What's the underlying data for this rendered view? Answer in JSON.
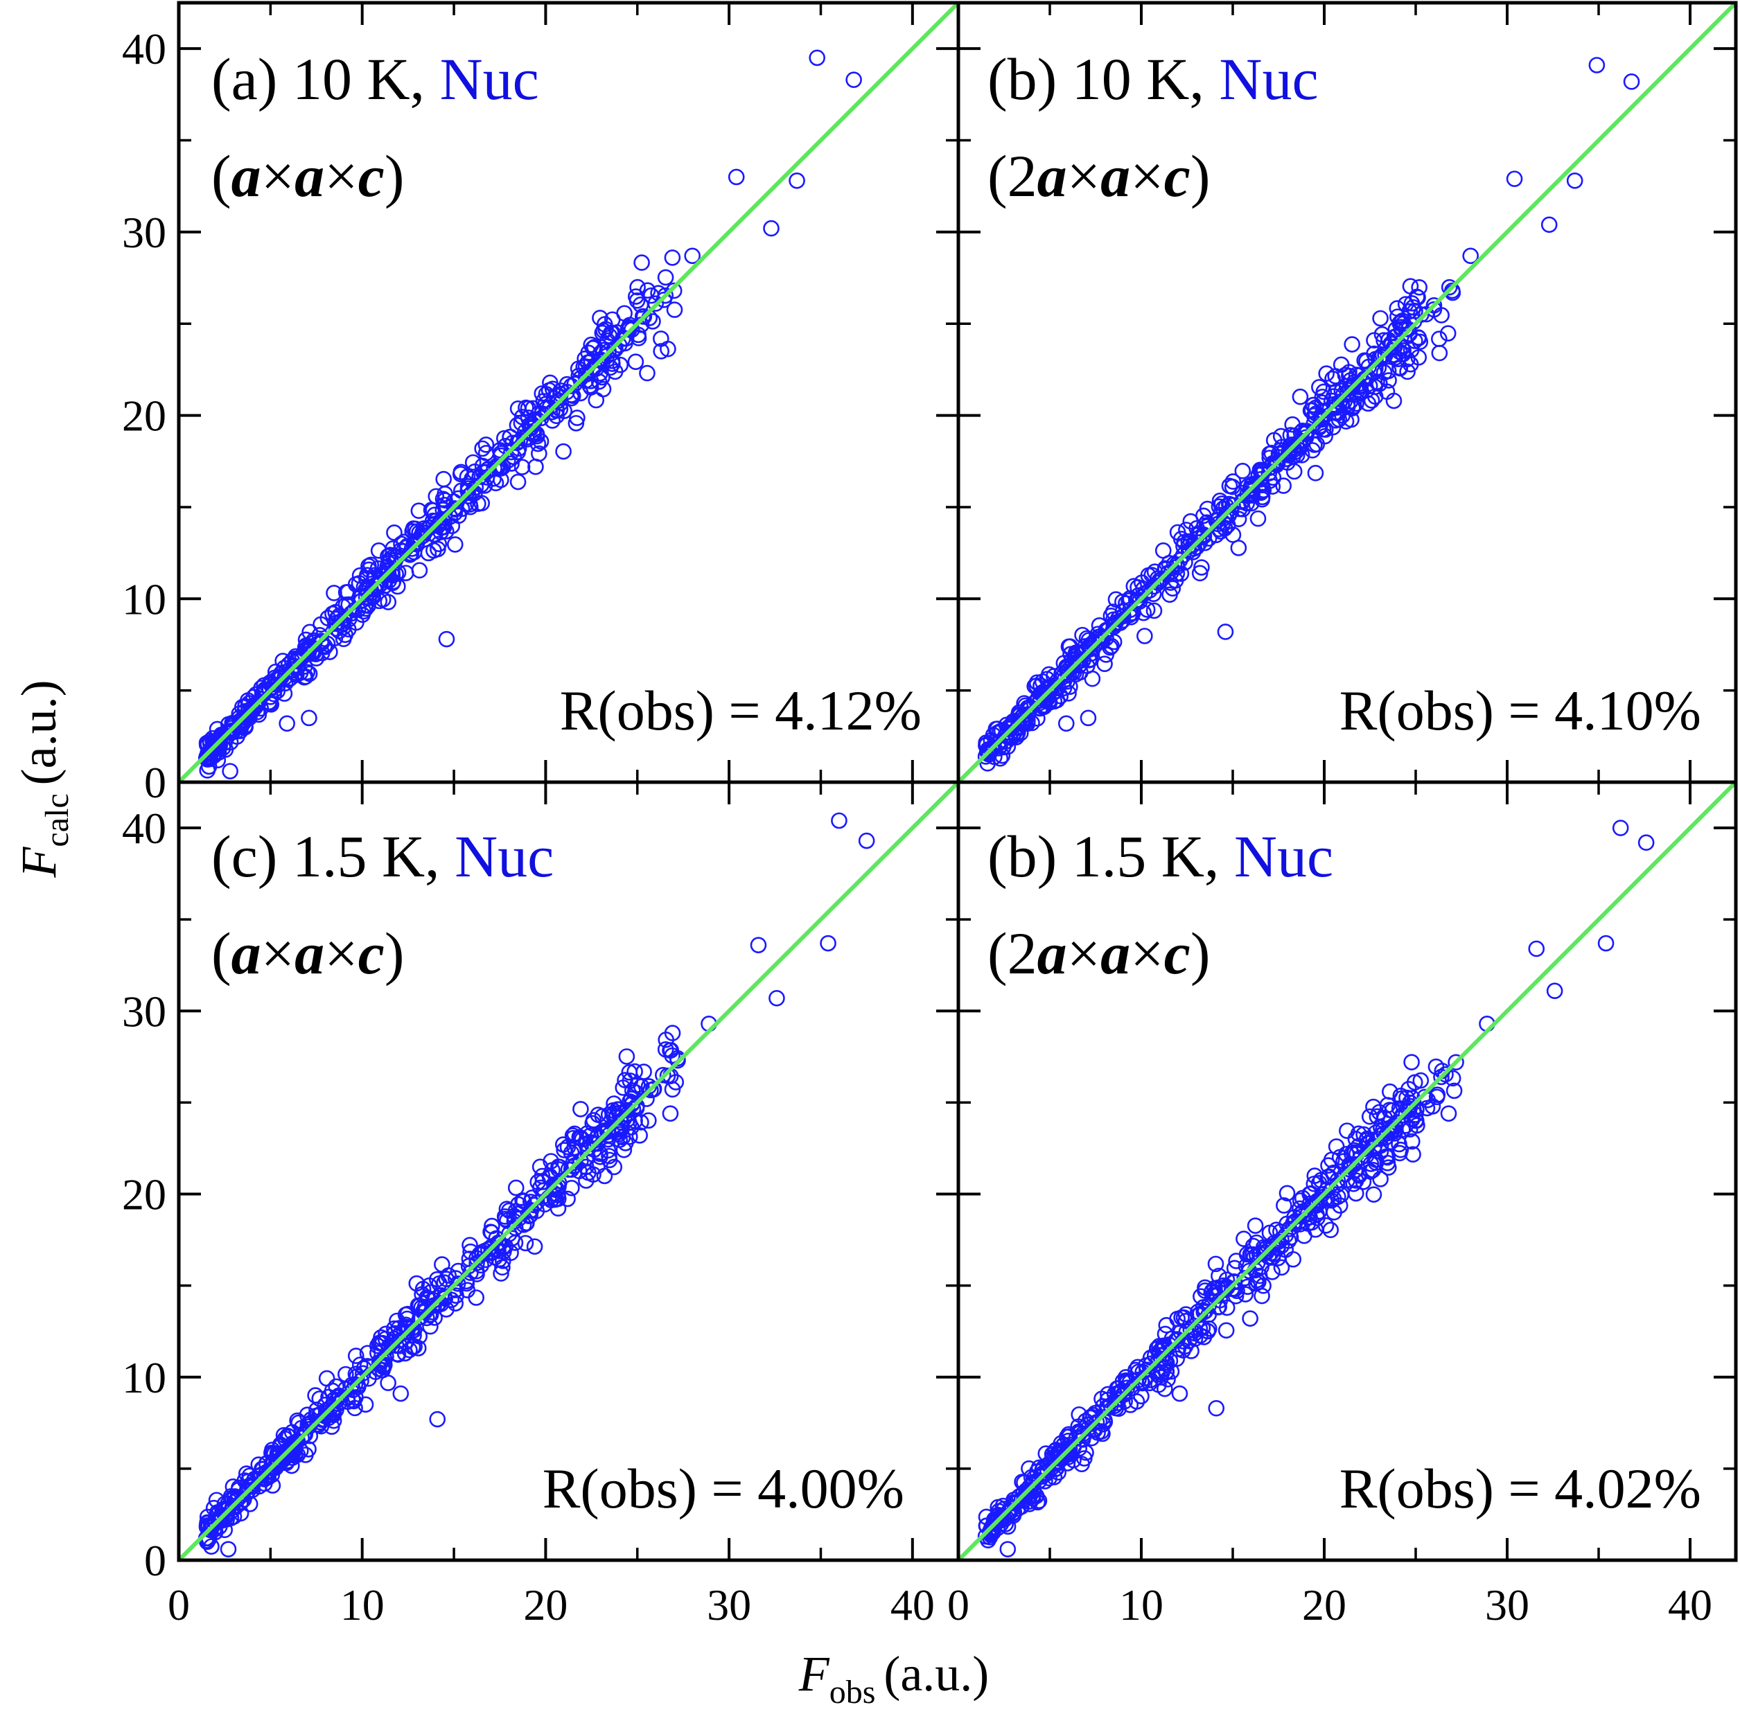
{
  "figure": {
    "xlabel": {
      "symbol": "F",
      "subscript": "obs",
      "unit": "(a.u.)"
    },
    "ylabel": {
      "symbol": "F",
      "subscript": "calc",
      "unit": "(a.u.)"
    },
    "x_ticks": [
      "0",
      "10",
      "20",
      "30",
      "40"
    ],
    "y_ticks": [
      "0",
      "10",
      "20",
      "30",
      "40"
    ],
    "colors": {
      "points": "#1a1aff",
      "line": "#5ee65e",
      "nuc_text": "#1010e0",
      "frame": "#000000"
    }
  },
  "panels": [
    {
      "id": "a",
      "label_prefix": "(a) 10 K, ",
      "label_nuc": "Nuc",
      "cell": {
        "open": "(",
        "c1": "a",
        "x1": "×",
        "c2": "a",
        "x2": "×",
        "c3": "c",
        "close": ")"
      },
      "r_obs": "R(obs) = 4.12%"
    },
    {
      "id": "b-10K",
      "label_prefix": "(b) 10 K, ",
      "label_nuc": "Nuc",
      "cell": {
        "open": "(2",
        "c1": "a",
        "x1": "×",
        "c2": "a",
        "x2": "×",
        "c3": "c",
        "close": ")"
      },
      "r_obs": "R(obs) = 4.10%"
    },
    {
      "id": "c",
      "label_prefix": "(c) 1.5 K, ",
      "label_nuc": "Nuc",
      "cell": {
        "open": "(",
        "c1": "a",
        "x1": "×",
        "c2": "a",
        "x2": "×",
        "c3": "c",
        "close": ")"
      },
      "r_obs": "R(obs) = 4.00%"
    },
    {
      "id": "b-1.5K",
      "label_prefix": "(b) 1.5 K, ",
      "label_nuc": "Nuc",
      "cell": {
        "open": "(2",
        "c1": "a",
        "x1": "×",
        "c2": "a",
        "x2": "×",
        "c3": "c",
        "close": ")"
      },
      "r_obs": "R(obs) = 4.02%"
    }
  ],
  "chart_data": [
    {
      "type": "scatter",
      "title": "(a) 10 K, Nuc (a×a×c)",
      "xlabel": "F_obs (a.u.)",
      "ylabel": "F_calc (a.u.)",
      "xlim": [
        0,
        42.5
      ],
      "ylim": [
        0,
        42.5
      ],
      "reference_line": "y = x",
      "note": "approx. 500 reflections clustered along y = x; representative points listed",
      "outliers": [
        [
          34.8,
          39.5
        ],
        [
          36.8,
          38.3
        ],
        [
          30.4,
          33.0
        ],
        [
          33.7,
          32.8
        ],
        [
          32.3,
          30.2
        ],
        [
          28.0,
          28.7
        ],
        [
          26.3,
          23.5
        ],
        [
          14.6,
          7.8
        ],
        [
          7.1,
          3.5
        ],
        [
          5.9,
          3.2
        ],
        [
          2.8,
          0.6
        ]
      ],
      "x": [
        1.5,
        2.2,
        3.0,
        3.8,
        4.6,
        5.4,
        6.2,
        7.0,
        7.8,
        8.6,
        9.4,
        10.2,
        11.0,
        11.8,
        12.6,
        13.4,
        14.2,
        15.0,
        15.8,
        16.6,
        17.4,
        18.2,
        19.0,
        19.8,
        20.6,
        21.4,
        22.2,
        23.0,
        23.8,
        24.6,
        25.3,
        26.0,
        27.0
      ],
      "y": [
        1.3,
        2.3,
        3.1,
        3.6,
        4.9,
        5.3,
        6.1,
        7.3,
        7.6,
        8.9,
        9.2,
        10.5,
        10.8,
        12.1,
        12.4,
        13.6,
        14.1,
        15.3,
        15.6,
        16.9,
        17.2,
        18.5,
        18.7,
        20.1,
        20.3,
        21.6,
        21.9,
        23.4,
        23.6,
        24.8,
        25.4,
        26.1,
        26.8
      ]
    },
    {
      "type": "scatter",
      "title": "(b) 10 K, Nuc (2a×a×c)",
      "xlabel": "F_obs (a.u.)",
      "ylabel": "F_calc (a.u.)",
      "xlim": [
        0,
        42.5
      ],
      "ylim": [
        0,
        42.5
      ],
      "reference_line": "y = x",
      "note": "approx. 500 reflections clustered along y = x; representative points listed",
      "outliers": [
        [
          34.9,
          39.1
        ],
        [
          36.8,
          38.2
        ],
        [
          30.4,
          32.9
        ],
        [
          33.7,
          32.8
        ],
        [
          32.3,
          30.4
        ],
        [
          28.0,
          28.7
        ],
        [
          26.3,
          23.4
        ],
        [
          14.6,
          8.2
        ],
        [
          7.1,
          3.5
        ],
        [
          5.9,
          3.2
        ]
      ],
      "x": [
        1.5,
        2.2,
        3.0,
        3.8,
        4.6,
        5.4,
        6.2,
        7.0,
        7.8,
        8.6,
        9.4,
        10.2,
        11.0,
        11.8,
        12.6,
        13.4,
        14.2,
        15.0,
        15.8,
        16.6,
        17.4,
        18.2,
        19.0,
        19.8,
        20.6,
        21.4,
        22.2,
        23.0,
        23.8,
        24.6,
        25.3,
        26.0,
        27.0
      ],
      "y": [
        1.4,
        2.1,
        3.2,
        3.7,
        4.8,
        5.5,
        6.0,
        7.2,
        7.7,
        8.7,
        9.4,
        10.3,
        11.0,
        11.9,
        12.6,
        13.5,
        14.3,
        15.1,
        15.7,
        16.8,
        17.3,
        18.4,
        18.8,
        19.9,
        20.5,
        21.5,
        22.0,
        23.1,
        23.7,
        24.7,
        25.5,
        26.0,
        26.8
      ]
    },
    {
      "type": "scatter",
      "title": "(c) 1.5 K, Nuc (a×a×c)",
      "xlabel": "F_obs (a.u.)",
      "ylabel": "F_calc (a.u.)",
      "xlim": [
        0,
        42.5
      ],
      "ylim": [
        0,
        42.5
      ],
      "reference_line": "y = x",
      "note": "approx. 500 reflections clustered along y = x; representative points listed",
      "outliers": [
        [
          36.0,
          40.4
        ],
        [
          37.5,
          39.3
        ],
        [
          31.6,
          33.6
        ],
        [
          35.4,
          33.7
        ],
        [
          32.6,
          30.7
        ],
        [
          28.9,
          29.3
        ],
        [
          26.8,
          24.4
        ],
        [
          14.1,
          7.7
        ],
        [
          12.1,
          9.1
        ],
        [
          2.7,
          0.6
        ]
      ],
      "x": [
        1.5,
        2.3,
        3.1,
        3.9,
        4.7,
        5.5,
        6.3,
        7.1,
        7.9,
        8.7,
        9.5,
        10.3,
        11.1,
        11.9,
        12.7,
        13.5,
        14.3,
        15.1,
        15.9,
        16.7,
        17.5,
        18.3,
        19.1,
        19.9,
        20.7,
        21.5,
        22.3,
        23.1,
        23.9,
        24.7,
        25.5,
        26.4,
        27.2
      ],
      "y": [
        1.2,
        2.4,
        2.9,
        4.1,
        4.5,
        5.7,
        6.1,
        7.3,
        7.7,
        8.9,
        9.3,
        10.6,
        10.9,
        12.2,
        12.5,
        13.7,
        14.0,
        15.4,
        15.7,
        16.9,
        17.3,
        18.5,
        18.8,
        20.2,
        20.4,
        21.7,
        22.0,
        23.3,
        23.6,
        24.9,
        25.2,
        26.5,
        27.3
      ]
    },
    {
      "type": "scatter",
      "title": "(b) 1.5 K, Nuc (2a×a×c)",
      "xlabel": "F_obs (a.u.)",
      "ylabel": "F_calc (a.u.)",
      "xlim": [
        0,
        42.5
      ],
      "ylim": [
        0,
        42.5
      ],
      "reference_line": "y = x",
      "note": "approx. 500 reflections clustered along y = x; representative points listed",
      "outliers": [
        [
          36.2,
          40.0
        ],
        [
          37.6,
          39.2
        ],
        [
          31.6,
          33.4
        ],
        [
          35.4,
          33.7
        ],
        [
          32.6,
          31.1
        ],
        [
          28.9,
          29.3
        ],
        [
          26.8,
          24.4
        ],
        [
          14.1,
          8.3
        ],
        [
          12.1,
          9.1
        ],
        [
          2.7,
          0.6
        ]
      ],
      "x": [
        1.5,
        2.3,
        3.1,
        3.9,
        4.7,
        5.5,
        6.3,
        7.1,
        7.9,
        8.7,
        9.5,
        10.3,
        11.1,
        11.9,
        12.7,
        13.5,
        14.3,
        15.1,
        15.9,
        16.7,
        17.5,
        18.3,
        19.1,
        19.9,
        20.7,
        21.5,
        22.3,
        23.1,
        23.9,
        24.7,
        25.5,
        26.4,
        27.2
      ],
      "y": [
        1.3,
        2.2,
        3.1,
        3.8,
        4.8,
        5.4,
        6.2,
        7.2,
        7.8,
        8.8,
        9.4,
        10.4,
        11.0,
        12.0,
        12.6,
        13.6,
        14.2,
        15.2,
        15.8,
        16.8,
        17.4,
        18.4,
        18.9,
        20.0,
        20.5,
        21.6,
        22.1,
        23.2,
        23.7,
        24.8,
        25.3,
        26.4,
        27.2
      ]
    }
  ]
}
